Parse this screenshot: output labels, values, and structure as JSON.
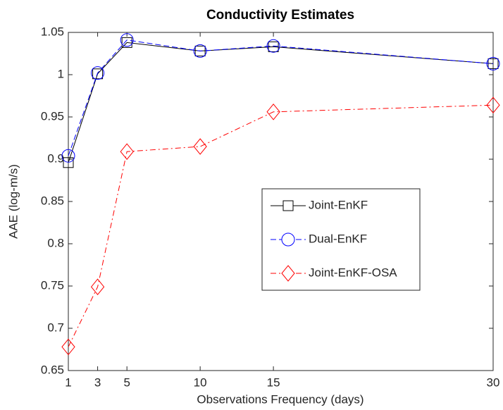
{
  "chart_data": {
    "type": "line",
    "title": "Conductivity Estimates",
    "x_label": "Observations Frequency (days)",
    "y_label": "AAE (log-m/s)",
    "x": [
      1,
      3,
      5,
      10,
      15,
      30
    ],
    "xlim": [
      1,
      30
    ],
    "xticks": [
      1,
      3,
      5,
      10,
      15,
      30
    ],
    "ylim": [
      0.65,
      1.05
    ],
    "yticks": [
      0.65,
      0.7,
      0.75,
      0.8,
      0.85,
      0.9,
      0.95,
      1,
      1.05
    ],
    "legend": "right",
    "series": [
      {
        "name": "Joint-EnKF",
        "color": "#000000",
        "marker": "square",
        "dash": "solid",
        "values": [
          0.896,
          1.001,
          1.038,
          1.028,
          1.033,
          1.013
        ]
      },
      {
        "name": "Dual-EnKF",
        "color": "#0000ff",
        "marker": "circle",
        "dash": "dashed",
        "values": [
          0.904,
          1.002,
          1.041,
          1.028,
          1.034,
          1.013
        ]
      },
      {
        "name": "Joint-EnKF-OSA",
        "color": "#ff0000",
        "marker": "diamond",
        "dash": "dashdot",
        "values": [
          0.678,
          0.749,
          0.909,
          0.915,
          0.956,
          0.964
        ]
      }
    ]
  }
}
